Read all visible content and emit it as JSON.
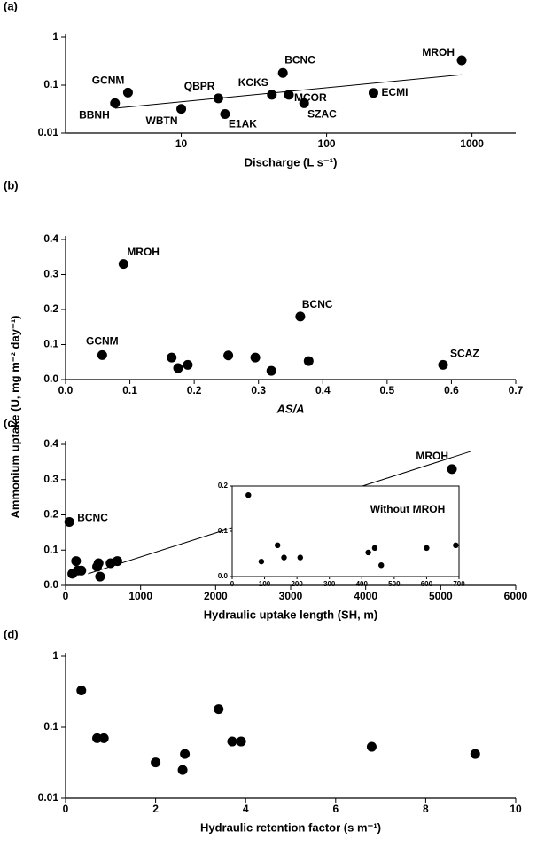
{
  "chart_data": [
    {
      "type": "scatter",
      "panel": "(a)",
      "xlabel": "Discharge (L s⁻¹)",
      "xscale": "log",
      "yscale": "log",
      "xlim": [
        1.6,
        2000
      ],
      "ylim": [
        0.01,
        1
      ],
      "xticks": [
        10,
        100,
        1000
      ],
      "yticks": [
        0.01,
        0.1,
        1
      ],
      "color": "#000000",
      "x": [
        3.5,
        4.3,
        10,
        18,
        20,
        42,
        50,
        55,
        70,
        210,
        850
      ],
      "values": [
        0.042,
        0.07,
        0.032,
        0.053,
        0.025,
        0.063,
        0.18,
        0.063,
        0.042,
        0.069,
        0.33
      ],
      "point_labels": [
        "BBNH",
        "GCNM",
        "WBTN",
        "QBPR",
        "E1AK",
        "KCKS",
        "BCNC",
        "MCOR",
        "SZAC",
        "ECMI",
        "MROH"
      ],
      "trend_line": {
        "x": [
          3.5,
          850
        ],
        "y": [
          0.033,
          0.165
        ]
      }
    },
    {
      "type": "scatter",
      "panel": "(b)",
      "xlabel": "AS/A",
      "ylabel": "Ammonium uptake (U, mg m⁻² day⁻¹)",
      "xlim": [
        0,
        0.7
      ],
      "ylim": [
        0,
        0.4
      ],
      "xticks": [
        {
          "value": 0,
          "label": "0.0"
        },
        0.1,
        0.2,
        0.3,
        0.4,
        0.5,
        0.6,
        0.7
      ],
      "yticks": [
        {
          "value": 0,
          "label": "0.0"
        },
        0.1,
        0.2,
        0.3,
        0.4
      ],
      "color": "#000000",
      "x": [
        0.057,
        0.09,
        0.165,
        0.175,
        0.19,
        0.253,
        0.295,
        0.32,
        0.365,
        0.378,
        0.587
      ],
      "values": [
        0.07,
        0.33,
        0.063,
        0.033,
        0.042,
        0.069,
        0.063,
        0.025,
        0.18,
        0.053,
        0.042
      ],
      "point_labels": [
        "GCNM",
        "MROH",
        null,
        null,
        null,
        null,
        null,
        null,
        "BCNC",
        null,
        "SCAZ"
      ]
    },
    {
      "type": "scatter",
      "panel": "(c)",
      "xlabel": "Hydraulic uptake length (SH, m)",
      "xlim": [
        0,
        6000
      ],
      "ylim": [
        0,
        0.4
      ],
      "xticks": [
        0,
        1000,
        2000,
        3000,
        4000,
        5000,
        6000
      ],
      "yticks": [
        {
          "value": 0,
          "label": "0.0"
        },
        0.1,
        0.2,
        0.3,
        0.4
      ],
      "color": "#000000",
      "x": [
        50,
        90,
        140,
        160,
        210,
        420,
        440,
        460,
        600,
        690,
        5150
      ],
      "values": [
        0.18,
        0.033,
        0.069,
        0.042,
        0.042,
        0.053,
        0.063,
        0.025,
        0.063,
        0.069,
        0.33
      ],
      "point_labels": [
        "BCNC",
        null,
        null,
        null,
        null,
        null,
        null,
        null,
        null,
        null,
        "MROH"
      ],
      "trend_line": {
        "x": [
          300,
          5400
        ],
        "y": [
          0.033,
          0.38
        ]
      }
    },
    {
      "type": "scatter",
      "annotation": "Without MROH",
      "xlim": [
        0,
        700
      ],
      "ylim": [
        0,
        0.2
      ],
      "xticks": [
        0,
        100,
        200,
        300,
        400,
        500,
        600,
        700
      ],
      "yticks": [
        {
          "value": 0,
          "label": "0.0"
        },
        0.1,
        0.2
      ],
      "color": "#000000",
      "x": [
        50,
        90,
        140,
        160,
        210,
        420,
        440,
        460,
        600,
        690
      ],
      "values": [
        0.18,
        0.033,
        0.069,
        0.042,
        0.042,
        0.053,
        0.063,
        0.025,
        0.063,
        0.069
      ]
    },
    {
      "type": "scatter",
      "panel": "(d)",
      "xlabel": "Hydraulic retention factor (s m⁻¹)",
      "yscale": "log",
      "xlim": [
        0,
        10
      ],
      "ylim": [
        0.01,
        1
      ],
      "xticks": [
        0,
        2,
        4,
        6,
        8,
        10
      ],
      "yticks": [
        0.01,
        0.1,
        1
      ],
      "color": "#000000",
      "x": [
        0.35,
        0.7,
        0.85,
        2.0,
        2.6,
        2.65,
        3.4,
        3.7,
        3.9,
        6.8,
        9.1
      ],
      "values": [
        0.33,
        0.07,
        0.07,
        0.032,
        0.025,
        0.042,
        0.18,
        0.063,
        0.063,
        0.053,
        0.042
      ]
    }
  ]
}
